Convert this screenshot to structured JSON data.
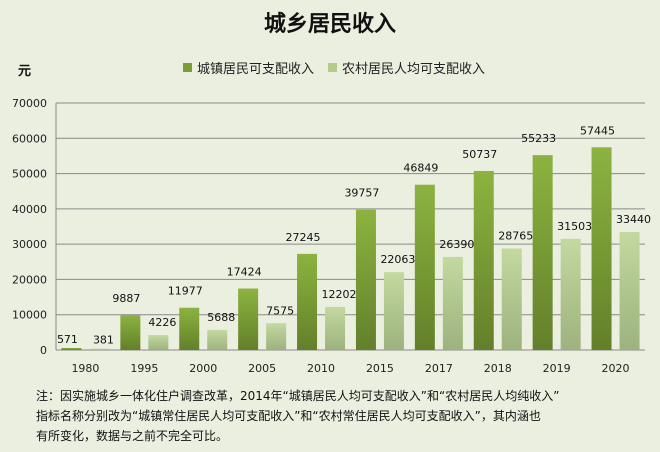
{
  "chart_data": {
    "type": "bar",
    "title": "城乡居民收入",
    "ylabel": "元",
    "xlabel": "",
    "ylim": [
      0,
      70000
    ],
    "yticks": [
      0,
      10000,
      20000,
      30000,
      40000,
      50000,
      60000,
      70000
    ],
    "grid": true,
    "legend_position": "top",
    "categories": [
      "1980",
      "1995",
      "2000",
      "2005",
      "2010",
      "2015",
      "2017",
      "2018",
      "2019",
      "2020"
    ],
    "series": [
      {
        "name": "城镇居民可支配收入",
        "color": "#7a9e32",
        "values": [
          571,
          9887,
          11977,
          17424,
          27245,
          39757,
          46849,
          50737,
          55233,
          57445
        ]
      },
      {
        "name": "农村居民人均可支配收入",
        "color": "#b4cc8a",
        "values": [
          381,
          4226,
          5688,
          7575,
          12202,
          22063,
          26390,
          28765,
          31503,
          33440
        ]
      }
    ]
  },
  "note": {
    "lines": [
      "注：因实施城乡一体化住户调查改革，2014年“城镇居民人均可支配收入”和“农村居民人均纯收入”",
      "指标名称分别改为“城镇常住居民人均可支配收入”和“农村常住居民人均可支配收入”，其内涵也",
      "有所变化，数据与之前不完全可比。"
    ]
  }
}
